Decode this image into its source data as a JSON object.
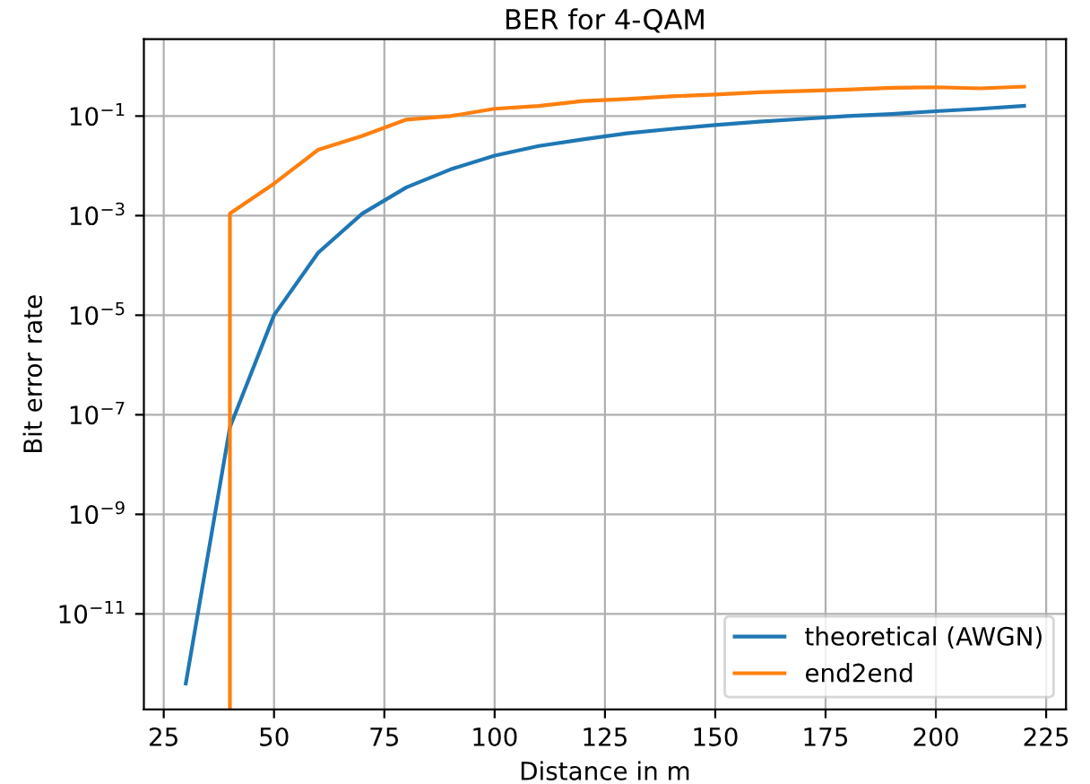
{
  "chart_data": {
    "type": "line",
    "title": "BER for 4-QAM",
    "xlabel": "Distance in m",
    "ylabel": "Bit error rate",
    "log": "y",
    "grid": true,
    "legend": "bottom right",
    "x": [
      30,
      40,
      50,
      60,
      70,
      80,
      90,
      100,
      110,
      120,
      130,
      140,
      150,
      160,
      170,
      180,
      190,
      200,
      210,
      220
    ],
    "series": [
      {
        "name": "theoretical (AWGN)",
        "color": "#1f77b4",
        "values": [
          4e-13,
          5.6e-08,
          1e-05,
          0.00018,
          0.0011,
          0.0037,
          0.0085,
          0.016,
          0.025,
          0.034,
          0.045,
          0.055,
          0.066,
          0.077,
          0.088,
          0.1,
          0.11,
          0.125,
          0.14,
          0.16
        ]
      },
      {
        "name": "end2end",
        "color": "#ff7f0e",
        "x": [
          40,
          40,
          50,
          60,
          70,
          80,
          90,
          100,
          110,
          120,
          130,
          140,
          150,
          160,
          170,
          180,
          190,
          200,
          210,
          220
        ],
        "values": [
          1.2e-13,
          0.0011,
          0.0044,
          0.021,
          0.04,
          0.085,
          0.1,
          0.14,
          0.16,
          0.2,
          0.22,
          0.25,
          0.27,
          0.3,
          0.32,
          0.34,
          0.37,
          0.38,
          0.36,
          0.39
        ]
      }
    ],
    "xlim": [
      20.5,
      229.5
    ],
    "xticks": [
      25,
      50,
      75,
      100,
      125,
      150,
      175,
      200,
      225
    ],
    "ylim": [
      1.2e-13,
      3.5
    ],
    "yticks": [
      {
        "value": 1e-11,
        "label": "10$^{−11}$"
      },
      {
        "value": 1e-09,
        "label": "10$^{−9}$"
      },
      {
        "value": 1e-07,
        "label": "10$^{−7}$"
      },
      {
        "value": 1e-05,
        "label": "10$^{−5}$"
      },
      {
        "value": 0.001,
        "label": "10$^{−3}$"
      },
      {
        "value": 0.1,
        "label": "10$^{−1}$"
      }
    ]
  }
}
